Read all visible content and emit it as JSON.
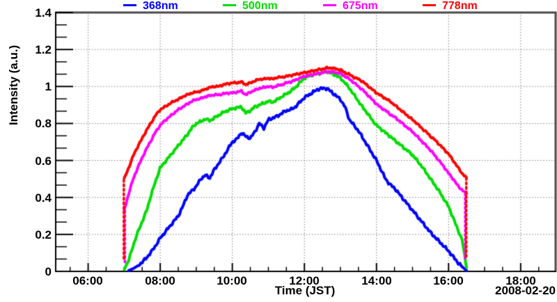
{
  "page": {
    "background": "#ffffff",
    "frame_top_right_color": "#4a4a4a",
    "frame_bottom_left_color": "#000000"
  },
  "chart_data": {
    "type": "line",
    "title": "",
    "xlabel": "Time (JST)",
    "ylabel": "Intensity (a.u.)",
    "date_annotation": "2008-02-20",
    "xlim": [
      5.1,
      18.95
    ],
    "ylim": [
      0,
      1.4
    ],
    "grid": "dotted",
    "grid_color": "#7a7a7a",
    "legend_position": "top",
    "frame": {
      "l": 80,
      "t": 18,
      "r": 797,
      "b": 390
    },
    "x_tick_values": [
      6,
      8,
      10,
      12,
      14,
      16,
      18
    ],
    "x_tick_labels": [
      "06:00",
      "08:00",
      "10:00",
      "12:00",
      "14:00",
      "16:00",
      "18:00"
    ],
    "x_minor_step": 0.5,
    "y_tick_values": [
      0,
      0.2,
      0.4,
      0.6,
      0.8,
      1.0,
      1.2,
      1.4
    ],
    "y_tick_labels": [
      "0",
      "0.2",
      "0.4",
      "0.6",
      "0.8",
      "1",
      "1.2",
      "1.4"
    ],
    "y_minor_per_major": 3,
    "series": [
      {
        "name": "368nm",
        "wavelength_nm": 368,
        "color": "#0000ff",
        "noise": 0.009,
        "t0": 7.125,
        "dt": 0.125,
        "values": [
          0.005,
          0.015,
          0.03,
          0.05,
          0.075,
          0.105,
          0.14,
          0.18,
          0.21,
          0.24,
          0.27,
          0.3,
          0.35,
          0.41,
          0.435,
          0.46,
          0.5,
          0.52,
          0.505,
          0.55,
          0.585,
          0.62,
          0.66,
          0.7,
          0.715,
          0.75,
          0.73,
          0.72,
          0.755,
          0.8,
          0.775,
          0.82,
          0.83,
          0.84,
          0.855,
          0.87,
          0.875,
          0.89,
          0.915,
          0.94,
          0.955,
          0.97,
          0.985,
          0.99,
          0.99,
          0.97,
          0.95,
          0.93,
          0.89,
          0.82,
          0.79,
          0.76,
          0.72,
          0.68,
          0.64,
          0.6,
          0.55,
          0.5,
          0.47,
          0.45,
          0.42,
          0.39,
          0.36,
          0.33,
          0.3,
          0.27,
          0.24,
          0.21,
          0.185,
          0.16,
          0.135,
          0.11,
          0.08,
          0.05,
          0.025,
          0.005
        ],
        "drops": []
      },
      {
        "name": "500nm",
        "wavelength_nm": 500,
        "color": "#00dc00",
        "noise": 0.008,
        "t0": 7.0,
        "dt": 0.125,
        "values": [
          0.01,
          0.06,
          0.14,
          0.21,
          0.27,
          0.33,
          0.415,
          0.49,
          0.56,
          0.59,
          0.62,
          0.65,
          0.68,
          0.71,
          0.74,
          0.775,
          0.8,
          0.81,
          0.825,
          0.815,
          0.83,
          0.845,
          0.86,
          0.87,
          0.88,
          0.885,
          0.89,
          0.855,
          0.87,
          0.89,
          0.9,
          0.91,
          0.92,
          0.915,
          0.93,
          0.945,
          0.96,
          0.975,
          0.995,
          1.02,
          1.045,
          1.055,
          1.065,
          1.07,
          1.075,
          1.08,
          1.07,
          1.06,
          1.045,
          1.02,
          0.99,
          0.955,
          0.92,
          0.885,
          0.855,
          0.82,
          0.79,
          0.77,
          0.75,
          0.73,
          0.71,
          0.69,
          0.67,
          0.65,
          0.63,
          0.6,
          0.57,
          0.535,
          0.5,
          0.465,
          0.43,
          0.39,
          0.35,
          0.29,
          0.23,
          0.17,
          0.02
        ],
        "drops": []
      },
      {
        "name": "675nm",
        "wavelength_nm": 675,
        "color": "#ff00ff",
        "noise": 0.006,
        "t0": 7.0,
        "dt": 0.125,
        "values": [
          0.33,
          0.42,
          0.5,
          0.56,
          0.615,
          0.665,
          0.71,
          0.755,
          0.79,
          0.815,
          0.835,
          0.855,
          0.875,
          0.89,
          0.905,
          0.92,
          0.93,
          0.935,
          0.945,
          0.95,
          0.955,
          0.955,
          0.96,
          0.965,
          0.965,
          0.97,
          0.975,
          0.955,
          0.97,
          0.98,
          0.99,
          0.995,
          1.0,
          0.995,
          1.005,
          1.01,
          1.02,
          1.025,
          1.035,
          1.045,
          1.055,
          1.06,
          1.065,
          1.07,
          1.075,
          1.08,
          1.08,
          1.075,
          1.07,
          1.055,
          1.04,
          1.02,
          1.0,
          0.98,
          0.955,
          0.93,
          0.905,
          0.885,
          0.87,
          0.85,
          0.835,
          0.815,
          0.795,
          0.775,
          0.755,
          0.73,
          0.705,
          0.68,
          0.655,
          0.625,
          0.595,
          0.565,
          0.53,
          0.5,
          0.465,
          0.44,
          0.42
        ],
        "drops": [
          {
            "t": 7.02,
            "from": 0.05,
            "to": 0.33
          },
          {
            "t": 16.46,
            "from": 0.07,
            "to": 0.42
          }
        ]
      },
      {
        "name": "778nm",
        "wavelength_nm": 778,
        "color": "#ff0000",
        "noise": 0.006,
        "t0": 7.0,
        "dt": 0.125,
        "values": [
          0.5,
          0.56,
          0.625,
          0.675,
          0.72,
          0.765,
          0.805,
          0.845,
          0.875,
          0.89,
          0.905,
          0.92,
          0.93,
          0.945,
          0.955,
          0.965,
          0.97,
          0.975,
          0.985,
          0.995,
          1.0,
          1.0,
          1.01,
          1.015,
          1.02,
          1.02,
          1.025,
          1.01,
          1.02,
          1.03,
          1.04,
          1.04,
          1.045,
          1.04,
          1.05,
          1.05,
          1.055,
          1.06,
          1.065,
          1.07,
          1.075,
          1.08,
          1.085,
          1.09,
          1.095,
          1.1,
          1.1,
          1.095,
          1.09,
          1.075,
          1.065,
          1.05,
          1.04,
          1.025,
          1.005,
          0.985,
          0.965,
          0.95,
          0.935,
          0.92,
          0.9,
          0.88,
          0.86,
          0.84,
          0.82,
          0.8,
          0.775,
          0.755,
          0.73,
          0.71,
          0.685,
          0.66,
          0.635,
          0.6,
          0.565,
          0.53,
          0.505
        ],
        "drops": [
          {
            "t": 6.99,
            "from": 0.07,
            "to": 0.5
          },
          {
            "t": 16.49,
            "from": 0.08,
            "to": 0.505
          }
        ]
      }
    ]
  }
}
